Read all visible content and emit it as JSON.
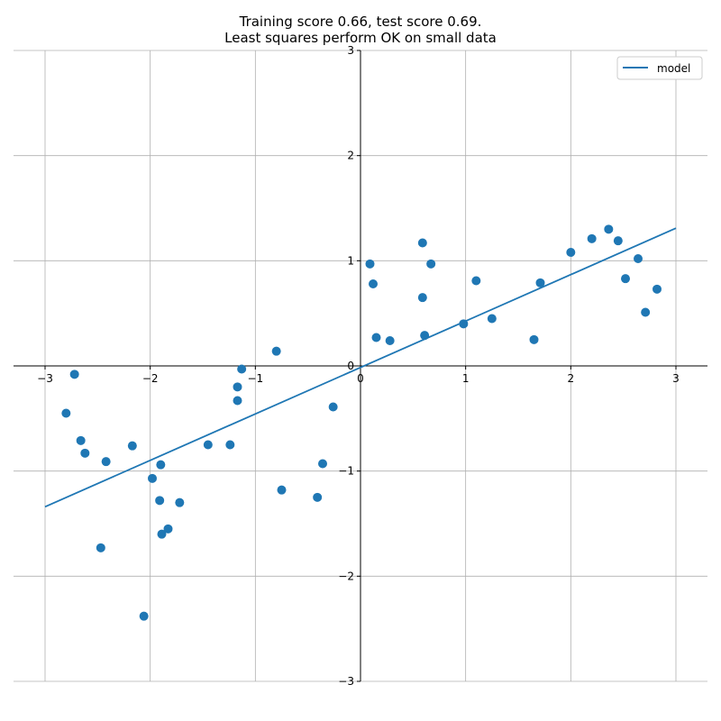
{
  "chart_data": {
    "type": "scatter",
    "title": "Training score 0.66, test score 0.69.",
    "subtitle": "Least squares perform OK on small data",
    "xlabel": "",
    "ylabel": "",
    "xlim": [
      -3.3,
      3.3
    ],
    "ylim": [
      -3,
      3
    ],
    "xticks": [
      -3,
      -2,
      -1,
      0,
      1,
      2,
      3
    ],
    "yticks": [
      -3,
      -2,
      -1,
      0,
      1,
      2,
      3
    ],
    "xtick_labels": [
      "−3",
      "−2",
      "−1",
      "0",
      "1",
      "2",
      "3"
    ],
    "ytick_labels": [
      "−3",
      "−2",
      "−1",
      "0",
      "1",
      "2",
      "3"
    ],
    "grid": true,
    "spines": "centered at origin",
    "legend": {
      "position": "top-right",
      "entries": [
        "model"
      ]
    },
    "colors": {
      "points": "#1f77b4",
      "line": "#1f77b4",
      "grid": "#b0b0b0"
    },
    "series": [
      {
        "type": "scatter",
        "points": [
          [
            -2.72,
            -0.08
          ],
          [
            -2.8,
            -0.45
          ],
          [
            -2.66,
            -0.71
          ],
          [
            -2.62,
            -0.83
          ],
          [
            -2.42,
            -0.91
          ],
          [
            -2.47,
            -1.73
          ],
          [
            -2.17,
            -0.76
          ],
          [
            -1.98,
            -1.07
          ],
          [
            -1.9,
            -0.94
          ],
          [
            -1.91,
            -1.28
          ],
          [
            -1.89,
            -1.6
          ],
          [
            -1.83,
            -1.55
          ],
          [
            -1.72,
            -1.3
          ],
          [
            -2.06,
            -2.38
          ],
          [
            -1.45,
            -0.75
          ],
          [
            -1.24,
            -0.75
          ],
          [
            -1.17,
            -0.2
          ],
          [
            -1.17,
            -0.33
          ],
          [
            -1.13,
            -0.03
          ],
          [
            -0.8,
            0.14
          ],
          [
            -0.75,
            -1.18
          ],
          [
            -0.41,
            -1.25
          ],
          [
            -0.36,
            -0.93
          ],
          [
            -0.26,
            -0.39
          ],
          [
            0.09,
            0.97
          ],
          [
            0.12,
            0.78
          ],
          [
            0.15,
            0.27
          ],
          [
            0.28,
            0.24
          ],
          [
            0.59,
            1.17
          ],
          [
            0.59,
            0.65
          ],
          [
            0.61,
            0.29
          ],
          [
            0.67,
            0.97
          ],
          [
            0.98,
            0.4
          ],
          [
            1.1,
            0.81
          ],
          [
            1.25,
            0.45
          ],
          [
            1.65,
            0.25
          ],
          [
            1.71,
            0.79
          ],
          [
            2.0,
            1.08
          ],
          [
            2.2,
            1.21
          ],
          [
            2.36,
            1.3
          ],
          [
            2.45,
            1.19
          ],
          [
            2.52,
            0.83
          ],
          [
            2.64,
            1.02
          ],
          [
            2.71,
            0.51
          ],
          [
            2.82,
            0.73
          ]
        ]
      },
      {
        "name": "model",
        "type": "line",
        "x": [
          -3,
          3
        ],
        "y": [
          -1.34,
          1.31
        ]
      }
    ]
  }
}
